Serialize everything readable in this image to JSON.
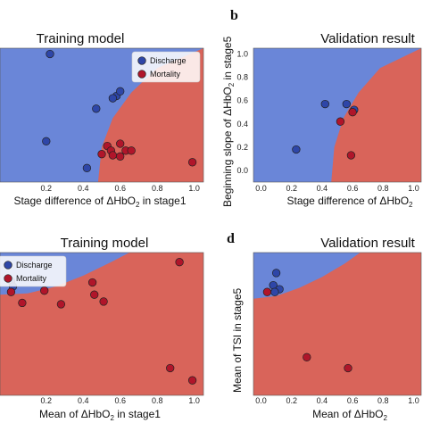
{
  "colors": {
    "discharge_region": "#6a86d8",
    "mortality_region": "#d9645a",
    "discharge_point": "#2e46a8",
    "mortality_point": "#b0152a",
    "point_stroke": "#222222"
  },
  "panel_labels": {
    "b": "b",
    "d": "d"
  },
  "chart_data": [
    {
      "id": "a",
      "type": "scatter",
      "title": "Training model",
      "xlabel": "Stage difference of ΔHbO",
      "xlabel_sub": "2",
      "xlabel_tail": " in stage1",
      "ylabel": "",
      "xlim": [
        -0.05,
        1.05
      ],
      "ylim": [
        -0.1,
        1.05
      ],
      "xticks": [
        "0.2",
        "0.4",
        "0.6",
        "0.8",
        "1.0"
      ],
      "xtick_values": [
        0.2,
        0.4,
        0.6,
        0.8,
        1.0
      ],
      "legend": {
        "entries": [
          "Discharge",
          "Mortality"
        ],
        "placement": "top-right"
      },
      "boundary": [
        [
          0.48,
          -0.1
        ],
        [
          0.5,
          0.2
        ],
        [
          0.56,
          0.45
        ],
        [
          0.66,
          0.67
        ],
        [
          0.8,
          0.88
        ],
        [
          1.05,
          1.05
        ]
      ],
      "series": [
        {
          "name": "Discharge",
          "points": [
            [
              0.22,
              1.0
            ],
            [
              0.58,
              0.64
            ],
            [
              0.6,
              0.68
            ],
            [
              0.56,
              0.62
            ],
            [
              0.47,
              0.53
            ],
            [
              0.2,
              0.25
            ],
            [
              0.42,
              0.02
            ]
          ]
        },
        {
          "name": "Mortality",
          "points": [
            [
              0.6,
              0.23
            ],
            [
              0.53,
              0.21
            ],
            [
              0.55,
              0.17
            ],
            [
              0.56,
              0.13
            ],
            [
              0.63,
              0.17
            ],
            [
              0.66,
              0.17
            ],
            [
              0.6,
              0.12
            ],
            [
              0.5,
              0.14
            ],
            [
              0.99,
              0.07
            ]
          ]
        }
      ]
    },
    {
      "id": "b",
      "type": "scatter",
      "title": "Validation result",
      "xlabel": "Stage difference of ΔHbO",
      "xlabel_sub": "2",
      "xlabel_tail": "",
      "ylabel": "Beginning slope of ΔHbO",
      "ylabel_sub": "2",
      "ylabel_tail": " in stage5",
      "xlim": [
        -0.05,
        1.05
      ],
      "ylim": [
        -0.1,
        1.05
      ],
      "xticks": [
        "0.0",
        "0.2",
        "0.4",
        "0.6",
        "0.8",
        "1.0"
      ],
      "xtick_values": [
        0.0,
        0.2,
        0.4,
        0.6,
        0.8,
        1.0
      ],
      "yticks": [
        "0.0",
        "0.2",
        "0.4",
        "0.6",
        "0.8",
        "1.0"
      ],
      "ytick_values": [
        0.0,
        0.2,
        0.4,
        0.6,
        0.8,
        1.0
      ],
      "legend": {
        "entries": [],
        "placement": "top-right"
      },
      "boundary": [
        [
          0.46,
          -0.1
        ],
        [
          0.48,
          0.2
        ],
        [
          0.54,
          0.45
        ],
        [
          0.64,
          0.67
        ],
        [
          0.78,
          0.88
        ],
        [
          1.05,
          1.05
        ]
      ],
      "series": [
        {
          "name": "Discharge",
          "points": [
            [
              0.42,
              0.57
            ],
            [
              0.56,
              0.57
            ],
            [
              0.61,
              0.52
            ],
            [
              0.23,
              0.18
            ]
          ]
        },
        {
          "name": "Mortality",
          "points": [
            [
              0.6,
              0.5
            ],
            [
              0.52,
              0.42
            ],
            [
              0.59,
              0.13
            ]
          ]
        }
      ]
    },
    {
      "id": "c",
      "type": "scatter",
      "title": "Training model",
      "xlabel": "Mean of ΔHbO",
      "xlabel_sub": "2",
      "xlabel_tail": " in stage1",
      "ylabel": "",
      "xlim": [
        -0.05,
        1.05
      ],
      "ylim": [
        -0.05,
        1.0
      ],
      "xticks": [
        "0.2",
        "0.4",
        "0.6",
        "0.8",
        "1.0"
      ],
      "xtick_values": [
        0.2,
        0.4,
        0.6,
        0.8,
        1.0
      ],
      "legend": {
        "entries": [
          "Discharge",
          "Mortality"
        ],
        "placement": "top-left"
      },
      "boundary": [
        [
          -0.05,
          0.69
        ],
        [
          0.1,
          0.7
        ],
        [
          0.25,
          0.75
        ],
        [
          0.4,
          0.83
        ],
        [
          0.55,
          0.93
        ],
        [
          0.65,
          1.0
        ]
      ],
      "series": [
        {
          "name": "Discharge",
          "points": [
            [
              0.01,
              0.79
            ],
            [
              0.02,
              0.75
            ]
          ]
        },
        {
          "name": "Mortality",
          "points": [
            [
              0.01,
              0.71
            ],
            [
              0.07,
              0.63
            ],
            [
              0.19,
              0.72
            ],
            [
              0.28,
              0.62
            ],
            [
              0.45,
              0.78
            ],
            [
              0.46,
              0.69
            ],
            [
              0.51,
              0.64
            ],
            [
              0.92,
              0.93
            ],
            [
              0.87,
              0.15
            ],
            [
              0.99,
              0.06
            ]
          ]
        }
      ]
    },
    {
      "id": "d",
      "type": "scatter",
      "title": "Validation result",
      "xlabel": "Mean of ΔHbO",
      "xlabel_sub": "2",
      "xlabel_tail": "",
      "ylabel": "Mean of TSI in stage5",
      "ylabel_sub": "",
      "ylabel_tail": "",
      "xlim": [
        -0.05,
        1.05
      ],
      "ylim": [
        -0.05,
        1.0
      ],
      "xticks": [
        "0.0",
        "0.2",
        "0.4",
        "0.6",
        "0.8",
        "1.0"
      ],
      "xtick_values": [
        0.0,
        0.2,
        0.4,
        0.6,
        0.8,
        1.0
      ],
      "yticks": [],
      "ytick_values": [],
      "legend": {
        "entries": [],
        "placement": "top-right"
      },
      "boundary": [
        [
          -0.05,
          0.66
        ],
        [
          0.1,
          0.68
        ],
        [
          0.25,
          0.74
        ],
        [
          0.4,
          0.82
        ],
        [
          0.55,
          0.92
        ],
        [
          0.65,
          1.0
        ]
      ],
      "series": [
        {
          "name": "Discharge",
          "points": [
            [
              0.08,
              0.76
            ],
            [
              0.1,
              0.85
            ],
            [
              0.12,
              0.73
            ],
            [
              0.09,
              0.71
            ]
          ]
        },
        {
          "name": "Mortality",
          "points": [
            [
              0.04,
              0.71
            ],
            [
              0.3,
              0.23
            ],
            [
              0.57,
              0.15
            ]
          ]
        }
      ]
    }
  ]
}
